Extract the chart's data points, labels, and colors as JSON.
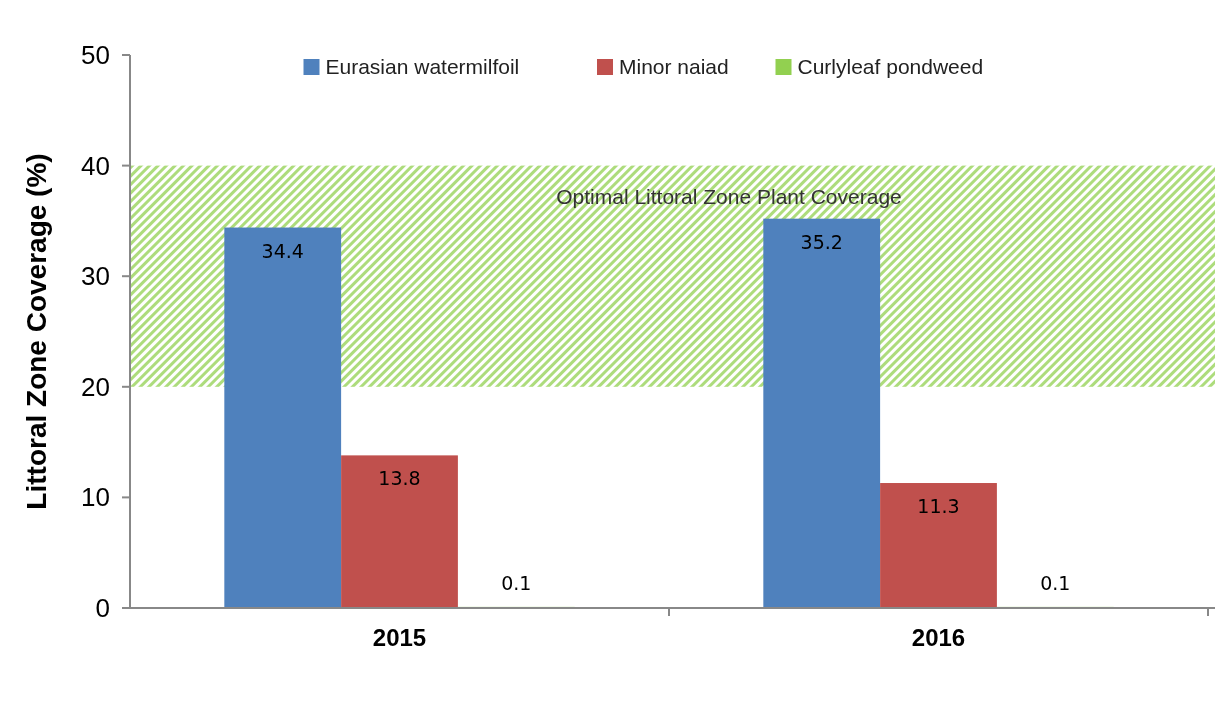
{
  "chart_data": {
    "type": "bar",
    "ylabel": "Littoral Zone Coverage (%)",
    "categories": [
      "2015",
      "2016"
    ],
    "series": [
      {
        "name": "Eurasian watermilfoil",
        "color": "#4f81bd",
        "values": [
          34.4,
          35.2
        ]
      },
      {
        "name": "Minor naiad",
        "color": "#c0504d",
        "values": [
          13.8,
          11.3
        ]
      },
      {
        "name": "Curlyleaf pondweed",
        "color": "#92d050",
        "values": [
          0.1,
          0.1
        ]
      }
    ],
    "ylim": [
      0,
      50
    ],
    "yticks": [
      0,
      10,
      20,
      30,
      40,
      50
    ],
    "grid": false,
    "legend": "top",
    "data_labels": true,
    "bands": [
      {
        "axis": "y",
        "from": 20,
        "to": 40,
        "label": "Optimal Littoral Zone Plant Coverage",
        "color": "#92d050"
      }
    ]
  }
}
